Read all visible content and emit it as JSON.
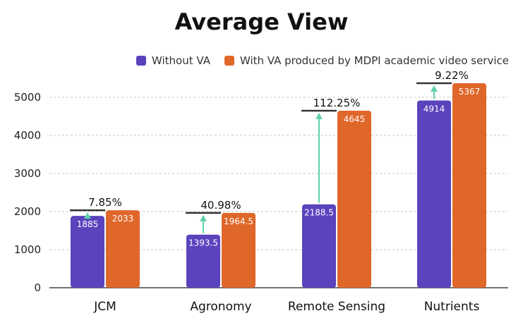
{
  "chart_data": {
    "type": "bar",
    "title": "Average View",
    "categories": [
      "JCM",
      "Agronomy",
      "Remote Sensing",
      "Nutrients"
    ],
    "series": [
      {
        "name": "Without VA",
        "color": "#5a43bd",
        "values": [
          1885,
          1393.5,
          2188.5,
          4914
        ],
        "labels": [
          "1885",
          "1393.5",
          "2188.5",
          "4914"
        ]
      },
      {
        "name": "With VA produced by MDPI academic video service",
        "color": "#e0672a",
        "values": [
          2033,
          1964.5,
          4645,
          5367
        ],
        "labels": [
          "2033",
          "1964.5",
          "4645",
          "5367"
        ]
      }
    ],
    "increase_labels": [
      "7.85%",
      "40.98%",
      "112.25%",
      "9.22%"
    ],
    "arrow_color": "#5fd3a8",
    "ylim": [
      0,
      5700
    ],
    "yticks": [
      0,
      1000,
      2000,
      3000,
      4000,
      5000
    ],
    "grid": true,
    "legend_position": "top-right"
  }
}
